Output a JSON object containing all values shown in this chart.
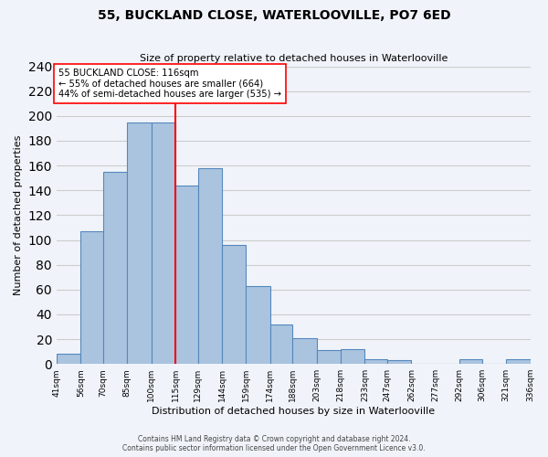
{
  "title": "55, BUCKLAND CLOSE, WATERLOOVILLE, PO7 6ED",
  "subtitle": "Size of property relative to detached houses in Waterlooville",
  "xlabel": "Distribution of detached houses by size in Waterlooville",
  "ylabel": "Number of detached properties",
  "bar_edges": [
    41,
    56,
    70,
    85,
    100,
    115,
    129,
    144,
    159,
    174,
    188,
    203,
    218,
    233,
    247,
    262,
    277,
    292,
    306,
    321,
    336
  ],
  "bar_heights": [
    8,
    107,
    155,
    195,
    195,
    144,
    158,
    96,
    63,
    32,
    21,
    11,
    12,
    4,
    3,
    0,
    0,
    4,
    0,
    4
  ],
  "bar_color": "#aac4e0",
  "bar_edge_color": "#5588bb",
  "vline_x": 115,
  "vline_color": "red",
  "annotation_title": "55 BUCKLAND CLOSE: 116sqm",
  "annotation_line1": "← 55% of detached houses are smaller (664)",
  "annotation_line2": "44% of semi-detached houses are larger (535) →",
  "annotation_box_color": "white",
  "annotation_box_edge": "red",
  "ylim": [
    0,
    240
  ],
  "yticks": [
    0,
    20,
    40,
    60,
    80,
    100,
    120,
    140,
    160,
    180,
    200,
    220,
    240
  ],
  "xtick_labels": [
    "41sqm",
    "56sqm",
    "70sqm",
    "85sqm",
    "100sqm",
    "115sqm",
    "129sqm",
    "144sqm",
    "159sqm",
    "174sqm",
    "188sqm",
    "203sqm",
    "218sqm",
    "233sqm",
    "247sqm",
    "262sqm",
    "277sqm",
    "292sqm",
    "306sqm",
    "321sqm",
    "336sqm"
  ],
  "footer1": "Contains HM Land Registry data © Crown copyright and database right 2024.",
  "footer2": "Contains public sector information licensed under the Open Government Licence v3.0.",
  "grid_color": "#cccccc",
  "bg_color": "#f0f4fa"
}
